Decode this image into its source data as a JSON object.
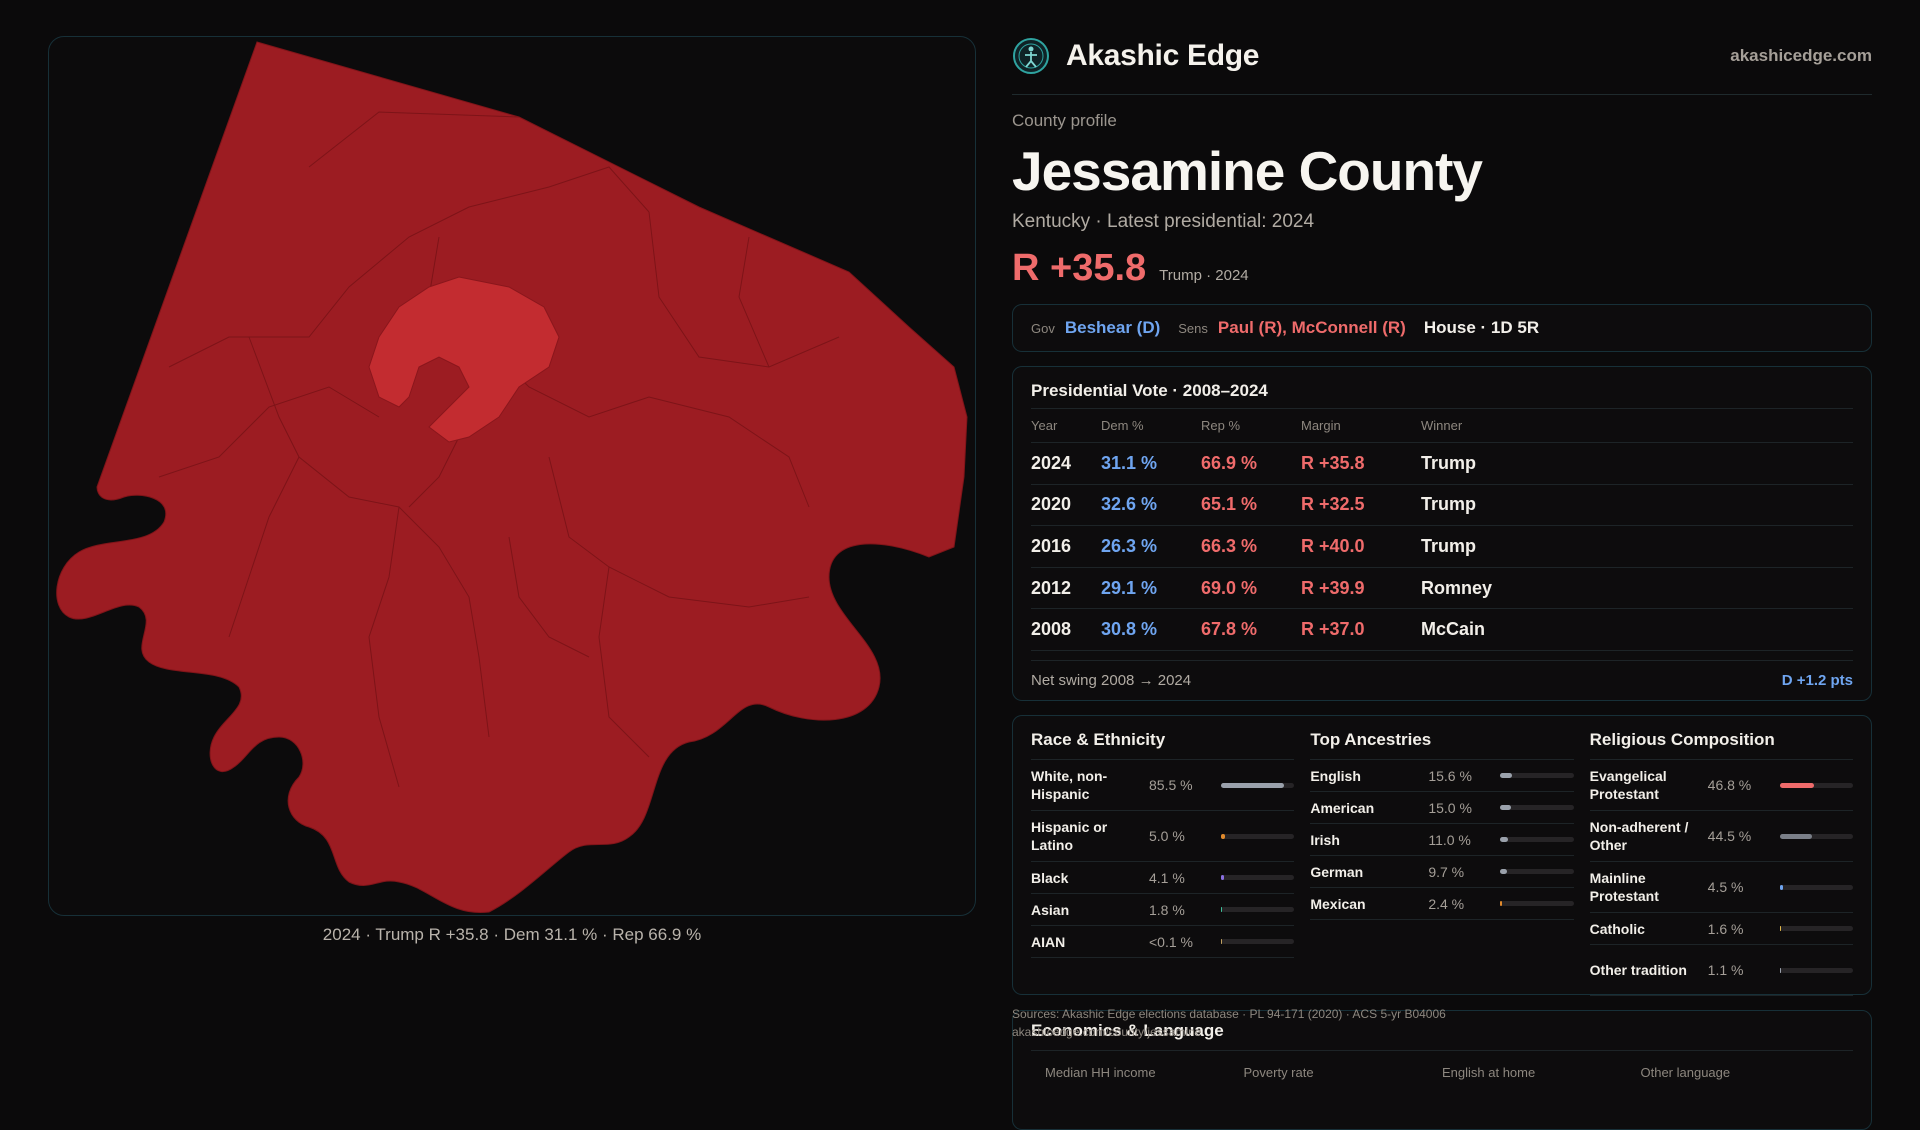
{
  "brand": {
    "name": "Akashic Edge",
    "url": "akashicedge.com",
    "logo_icon": "compass-figure-icon"
  },
  "header": {
    "eyebrow": "County profile",
    "title": "Jessamine County",
    "subtitle": "Kentucky · Latest presidential: 2024",
    "margin": "R +35.8",
    "margin_note": "Trump · 2024"
  },
  "reps": {
    "gov_label": "Gov",
    "gov": "Beshear (D)",
    "sens_label": "Sens",
    "sens": "Paul (R), McConnell (R)",
    "house": "House · 1D 5R"
  },
  "presidential": {
    "title": "Presidential Vote · 2008–2024",
    "columns": [
      "Year",
      "Dem %",
      "Rep %",
      "Margin",
      "Winner"
    ],
    "rows": [
      {
        "year": "2024",
        "dem": "31.1 %",
        "rep": "66.9 %",
        "margin": "R +35.8",
        "winner": "Trump"
      },
      {
        "year": "2020",
        "dem": "32.6 %",
        "rep": "65.1 %",
        "margin": "R +32.5",
        "winner": "Trump"
      },
      {
        "year": "2016",
        "dem": "26.3 %",
        "rep": "66.3 %",
        "margin": "R +40.0",
        "winner": "Trump"
      },
      {
        "year": "2012",
        "dem": "29.1 %",
        "rep": "69.0 %",
        "margin": "R +39.9",
        "winner": "Romney"
      },
      {
        "year": "2008",
        "dem": "30.8 %",
        "rep": "67.8 %",
        "margin": "R +37.0",
        "winner": "McCain"
      }
    ],
    "swing_label": "Net swing 2008 → 2024",
    "swing_value": "D +1.2 pts"
  },
  "demographics": [
    {
      "title": "Race & Ethnicity",
      "items": [
        {
          "name": "White, non-Hispanic",
          "pct": "85.5 %",
          "value": 85.5,
          "color": "#9aa1ab"
        },
        {
          "name": "Hispanic or Latino",
          "pct": "5.0 %",
          "value": 5.0,
          "color": "#e08a2c"
        },
        {
          "name": "Black",
          "pct": "4.1 %",
          "value": 4.1,
          "color": "#8a6fe0"
        },
        {
          "name": "Asian",
          "pct": "1.8 %",
          "value": 1.8,
          "color": "#3fbf9a"
        },
        {
          "name": "AIAN",
          "pct": "<0.1 %",
          "value": 0.05,
          "color": "#c0a060"
        }
      ]
    },
    {
      "title": "Top Ancestries",
      "items": [
        {
          "name": "English",
          "pct": "15.6 %",
          "value": 15.6,
          "color": "#9aa1ab"
        },
        {
          "name": "American",
          "pct": "15.0 %",
          "value": 15.0,
          "color": "#9aa1ab"
        },
        {
          "name": "Irish",
          "pct": "11.0 %",
          "value": 11.0,
          "color": "#9aa1ab"
        },
        {
          "name": "German",
          "pct": "9.7 %",
          "value": 9.7,
          "color": "#9aa1ab"
        },
        {
          "name": "Mexican",
          "pct": "2.4 %",
          "value": 2.4,
          "color": "#e08a2c"
        }
      ]
    },
    {
      "title": "Religious Composition",
      "items": [
        {
          "name": "Evangelical Protestant",
          "pct": "46.8 %",
          "value": 46.8,
          "color": "#ef6b6b"
        },
        {
          "name": "Non-adherent / Other",
          "pct": "44.5 %",
          "value": 44.5,
          "color": "#7a7f88"
        },
        {
          "name": "Mainline Protestant",
          "pct": "4.5 %",
          "value": 4.5,
          "color": "#6fa5f0"
        },
        {
          "name": "Catholic",
          "pct": "1.6 %",
          "value": 1.6,
          "color": "#e0b84a"
        },
        {
          "name": "Other tradition",
          "pct": "1.1 %",
          "value": 1.1,
          "color": "#9aa1ab"
        }
      ]
    }
  ],
  "map": {
    "caption": "2024 · Trump R +35.8 · Dem 31.1 % · Rep 66.9 %",
    "fill": "#9c1c22",
    "highlight": "#c32c30"
  },
  "sources": {
    "line1": "Sources: Akashic Edge elections database · PL 94-171 (2020) · ACS 5-yr B04006",
    "line2": "akashicedge.com/county/jessamine"
  },
  "economics": {
    "title": "Economics & Language",
    "columns": [
      "Median HH income",
      "Poverty rate",
      "English at home",
      "Other language"
    ]
  }
}
